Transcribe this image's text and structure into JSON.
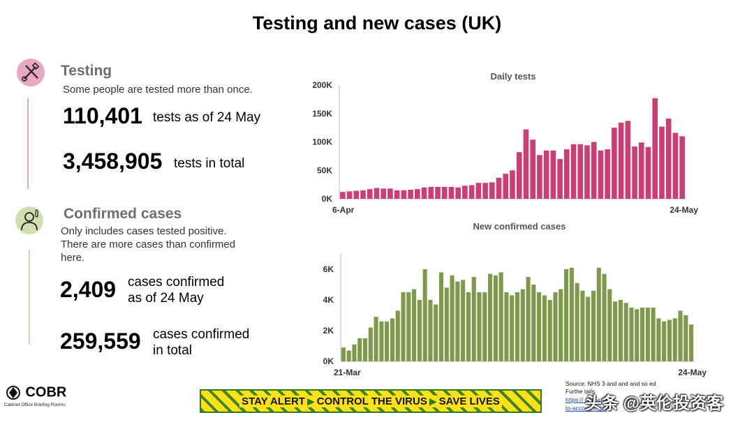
{
  "title": "Testing and new cases (UK)",
  "testing": {
    "heading": "Testing",
    "subtitle": "Some people are tested more than once.",
    "stat1_value": "110,401",
    "stat1_label": "tests as of 24 May",
    "stat2_value": "3,458,905",
    "stat2_label": "tests in total",
    "color": "#d4376e"
  },
  "cases": {
    "heading": "Confirmed cases",
    "subtitle_lines": [
      "Only includes cases tested positive.",
      "There are more cases than confirmed",
      "here."
    ],
    "stat1_value": "2,409",
    "stat1_label_lines": [
      "cases confirmed",
      "as of 24 May"
    ],
    "stat2_value": "259,559",
    "stat2_label_lines": [
      "cases confirmed",
      "in total"
    ],
    "color": "#7d9a4a"
  },
  "chart_data": [
    {
      "type": "bar",
      "title": "Daily tests",
      "x_start_label": "6-Apr",
      "x_end_label": "24-May",
      "ylim": [
        0,
        200000
      ],
      "yticks": [
        0,
        50000,
        100000,
        150000,
        200000
      ],
      "ytick_labels": [
        "0K",
        "50K",
        "100K",
        "150K",
        "200K"
      ],
      "color": "#cc3d72",
      "values": [
        12000,
        13000,
        14000,
        15000,
        17000,
        19000,
        18000,
        18000,
        15000,
        15000,
        16000,
        17000,
        20000,
        21000,
        21000,
        21000,
        21000,
        20000,
        23000,
        24000,
        28000,
        28000,
        29000,
        37000,
        44000,
        50000,
        82000,
        122000,
        104000,
        77000,
        85000,
        85000,
        70000,
        87000,
        96000,
        96000,
        94000,
        100000,
        85000,
        87000,
        125000,
        134000,
        137000,
        92000,
        99000,
        91000,
        177000,
        127000,
        141000,
        116000,
        110000
      ]
    },
    {
      "type": "bar",
      "title": "New confirmed cases",
      "x_start_label": "21-Mar",
      "x_end_label": "24-May",
      "ylim": [
        0,
        7000
      ],
      "yticks": [
        0,
        2000,
        4000,
        6000
      ],
      "ytick_labels": [
        "0K",
        "2K",
        "4K",
        "6K"
      ],
      "color": "#7d9a4a",
      "values": [
        900,
        700,
        1100,
        1500,
        1500,
        2200,
        2900,
        2600,
        2600,
        2800,
        3300,
        4500,
        4500,
        4700,
        4000,
        6000,
        4000,
        3700,
        5800,
        4800,
        5600,
        5200,
        5300,
        4500,
        5500,
        4500,
        4500,
        5700,
        5600,
        5800,
        4500,
        4300,
        4500,
        4700,
        5500,
        5000,
        4500,
        4300,
        4000,
        4500,
        4700,
        6000,
        6100,
        5100,
        4600,
        4200,
        4600,
        6100,
        5700,
        4700,
        3900,
        4000,
        3800,
        3500,
        3400,
        3500,
        3500,
        3500,
        2800,
        2600,
        2700,
        2800,
        3300,
        3000,
        2400
      ]
    }
  ],
  "banner": {
    "part1": "STAY ALERT",
    "part2": "CONTROL THE VIRUS",
    "part3": "SAVE LIVES"
  },
  "logo": {
    "name": "COBR",
    "subtitle": "Cabinet Office Briefing Rooms"
  },
  "source": {
    "line1": "Source: NHS 3 and and and so ed",
    "line2": "Furthe  tails",
    "link1": "https://   gov.  ets-",
    "link2": "to-accoun   tr   the"
  },
  "watermark": "头条 @英伦投资客"
}
